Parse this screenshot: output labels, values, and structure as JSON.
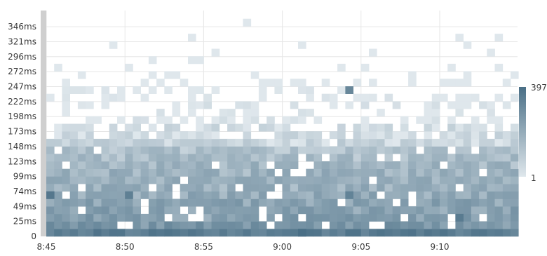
{
  "chart_data": {
    "type": "heatmap",
    "title": "",
    "xlabel": "",
    "ylabel": "",
    "y_tick_labels": [
      "0",
      "25ms",
      "49ms",
      "74ms",
      "99ms",
      "123ms",
      "148ms",
      "173ms",
      "198ms",
      "222ms",
      "247ms",
      "272ms",
      "296ms",
      "321ms",
      "346ms"
    ],
    "x_tick_labels": [
      "8:45",
      "8:50",
      "8:55",
      "9:00",
      "9:05",
      "9:10"
    ],
    "x_range": [
      "8:45",
      "9:15"
    ],
    "y_range_ms": [
      0,
      370
    ],
    "bucket_width_minutes": 0.5,
    "bucket_height_ms": 12.3,
    "count_scale": {
      "min": 1,
      "max": 397,
      "min_label": "1",
      "max_label": "397"
    },
    "colors": {
      "low": "#dfe7ec",
      "high": "#4a6f86",
      "grid": "#e6e6e6",
      "left_strip": "#cfcfcf"
    },
    "grid": true,
    "legend_placement": "right",
    "density_profile": {
      "0": 220,
      "1": 70,
      "2": 45,
      "3": 40,
      "4": 35,
      "5": 25,
      "6": 20,
      "7": 18,
      "8": 18,
      "9": 14,
      "10": 10,
      "11": 8,
      "12": 3,
      "13": 2,
      "14": 2,
      "15": 1,
      "16": 1,
      "17": 1,
      "18": 0.8,
      "19": 0.8,
      "20": 0.6,
      "21": 0.3,
      "22": 0.3,
      "23": 0.3,
      "24": 0.2,
      "25": 0.1,
      "26": 0.1,
      "27": 0.05,
      "28": 0.05,
      "29": 0.05
    },
    "hot_cells": [
      {
        "time": "8:45",
        "row": 5,
        "count": 260
      },
      {
        "time": "8:50",
        "row": 5,
        "count": 170
      },
      {
        "time": "9:04",
        "row": 19,
        "count": 120
      },
      {
        "time": "9:04",
        "row": 5,
        "count": 150
      },
      {
        "time": "9:01",
        "row": 0,
        "count": 397
      },
      {
        "time": "9:11",
        "row": 2,
        "count": 220
      }
    ]
  }
}
